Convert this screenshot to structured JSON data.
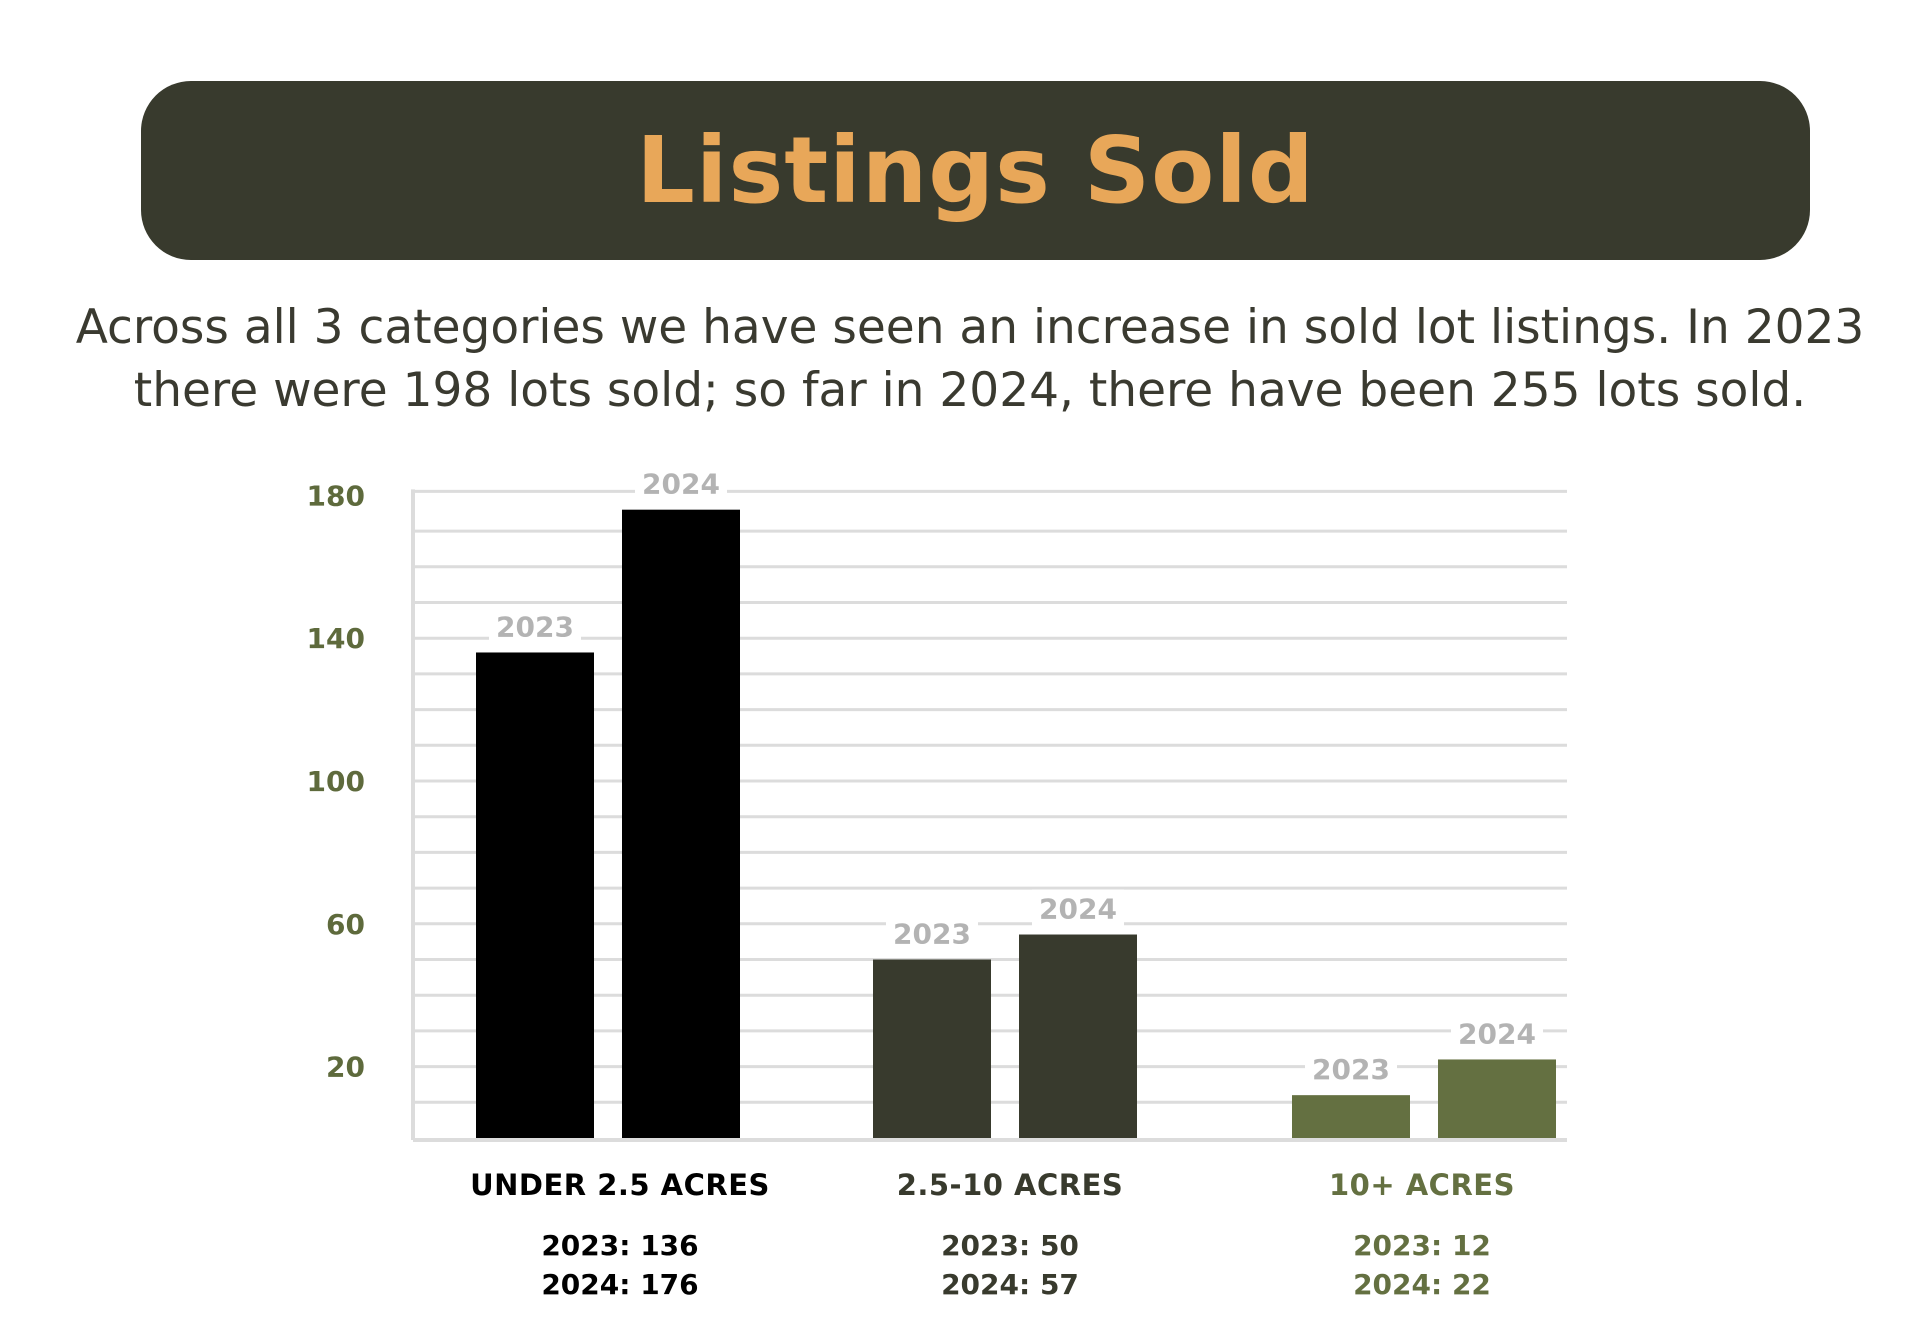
{
  "title": "Listings Sold",
  "subtitle_lines": [
    "Across all 3 categories we have seen an increase in sold lot listings. In 2023",
    "there were 198 lots sold; so far in 2024, there have been 255 lots sold."
  ],
  "colors": {
    "banner": "#383a2d",
    "title": "#e8a759",
    "under_2_5": "#000000",
    "mid": "#383a2d",
    "over_10": "#647041",
    "grid": "#dcdcdc",
    "bar_label": "#b3b3b3",
    "tick": "#5e6a3c"
  },
  "chart_data": {
    "type": "bar",
    "categories": [
      "UNDER 2.5 ACRES",
      "2.5-10 ACRES",
      "10+ ACRES"
    ],
    "series": [
      {
        "name": "2023",
        "values": [
          136,
          50,
          12
        ]
      },
      {
        "name": "2024",
        "values": [
          176,
          57,
          22
        ]
      }
    ],
    "bar_labels": [
      "2023",
      "2024"
    ],
    "category_colors": [
      "#000000",
      "#383a2d",
      "#647041"
    ],
    "category_value_lines": [
      [
        "2023: 136",
        "2024: 176"
      ],
      [
        "2023: 50",
        "2024: 57"
      ],
      [
        "2023: 12",
        "2024: 22"
      ]
    ],
    "yticks": [
      20,
      60,
      100,
      140,
      180
    ],
    "ylim": [
      0,
      180
    ],
    "grid": true
  }
}
